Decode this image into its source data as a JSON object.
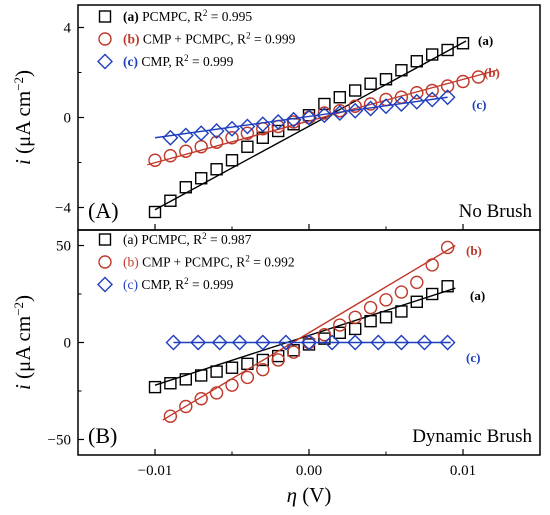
{
  "chart_data": [
    {
      "type": "scatter",
      "panel_label": "(A)",
      "corner_label": "No Brush",
      "xlabel": "",
      "ylabel": "i (μA cm−2)",
      "xlim": [
        -0.015,
        0.015
      ],
      "ylim": [
        -5,
        5
      ],
      "yticks": [
        -4,
        0,
        4
      ],
      "ytick_labels": [
        "−4",
        "0",
        "4"
      ],
      "legend_position": "top-left",
      "series": [
        {
          "id": "a",
          "tag": "(a)",
          "name": "PCMPC",
          "r2": "0.995",
          "label": "(a)",
          "marker": "square",
          "color": "#000000",
          "label_color": "#000000",
          "bold_tag": true,
          "fit": [
            [
              -0.01,
              -4.1
            ],
            [
              0.0102,
              3.4
            ]
          ],
          "x": [
            -0.01,
            -0.009,
            -0.008,
            -0.007,
            -0.006,
            -0.005,
            -0.004,
            -0.003,
            -0.002,
            -0.001,
            0.0,
            0.001,
            0.002,
            0.003,
            0.004,
            0.005,
            0.006,
            0.007,
            0.008,
            0.009,
            0.01
          ],
          "y": [
            -4.2,
            -3.7,
            -3.1,
            -2.7,
            -2.3,
            -1.9,
            -1.3,
            -0.9,
            -0.6,
            -0.3,
            0.1,
            0.6,
            0.9,
            1.2,
            1.5,
            1.7,
            2.1,
            2.5,
            2.8,
            3.0,
            3.3
          ]
        },
        {
          "id": "b",
          "tag": "(b)",
          "name": "CMP + PCMPC",
          "r2": "0.999",
          "label": "(b)",
          "marker": "circle",
          "color": "#c0392b",
          "label_color": "#c0392b",
          "bold_tag": true,
          "fit": [
            [
              -0.0105,
              -2.1
            ],
            [
              0.0122,
              2.1
            ]
          ],
          "x": [
            -0.01,
            -0.009,
            -0.008,
            -0.007,
            -0.006,
            -0.005,
            -0.004,
            -0.003,
            -0.002,
            -0.001,
            0.0,
            0.001,
            0.002,
            0.003,
            0.004,
            0.005,
            0.006,
            0.007,
            0.008,
            0.009,
            0.01,
            0.011
          ],
          "y": [
            -1.9,
            -1.7,
            -1.5,
            -1.3,
            -1.1,
            -0.9,
            -0.7,
            -0.5,
            -0.4,
            -0.2,
            0.0,
            0.2,
            0.3,
            0.5,
            0.6,
            0.8,
            0.9,
            1.1,
            1.2,
            1.4,
            1.6,
            1.8
          ]
        },
        {
          "id": "c",
          "tag": "(c)",
          "name": "CMP",
          "r2": "0.999",
          "label": "(c)",
          "marker": "diamond",
          "color": "#1f3fbf",
          "label_color": "#1f3fbf",
          "bold_tag": true,
          "fit": [
            [
              -0.01,
              -0.9
            ],
            [
              0.009,
              0.9
            ]
          ],
          "x": [
            -0.009,
            -0.008,
            -0.007,
            -0.006,
            -0.005,
            -0.004,
            -0.003,
            -0.002,
            -0.001,
            0.0,
            0.001,
            0.002,
            0.003,
            0.004,
            0.005,
            0.006,
            0.007,
            0.008,
            0.009
          ],
          "y": [
            -0.9,
            -0.8,
            -0.7,
            -0.6,
            -0.5,
            -0.4,
            -0.3,
            -0.2,
            -0.1,
            0.0,
            0.1,
            0.2,
            0.3,
            0.4,
            0.5,
            0.6,
            0.7,
            0.8,
            0.9
          ]
        }
      ]
    },
    {
      "type": "scatter",
      "panel_label": "(B)",
      "corner_label": "Dynamic Brush",
      "xlabel": "η (V)",
      "ylabel": "i (μA cm−2)",
      "xlim": [
        -0.015,
        0.015
      ],
      "ylim": [
        -58,
        58
      ],
      "yticks": [
        -50,
        0,
        50
      ],
      "ytick_labels": [
        "−50",
        "0",
        "50"
      ],
      "xticks": [
        -0.01,
        0.0,
        0.01
      ],
      "xtick_labels": [
        "−0.01",
        "0.00",
        "0.01"
      ],
      "legend_position": "top-left",
      "series": [
        {
          "id": "a",
          "tag": "(a)",
          "name": "PCMPC",
          "r2": "0.987",
          "label": "(a)",
          "marker": "square",
          "color": "#000000",
          "label_color": "#000000",
          "bold_tag": false,
          "fit": [
            [
              -0.01,
              -22
            ],
            [
              0.0095,
              28
            ]
          ],
          "x": [
            -0.01,
            -0.009,
            -0.008,
            -0.007,
            -0.006,
            -0.005,
            -0.004,
            -0.003,
            -0.002,
            -0.001,
            0.0,
            0.001,
            0.002,
            0.003,
            0.004,
            0.005,
            0.006,
            0.007,
            0.008,
            0.009
          ],
          "y": [
            -23,
            -21,
            -19,
            -17,
            -15,
            -13,
            -11,
            -9,
            -7,
            -4,
            -1,
            2,
            5,
            7,
            11,
            13,
            16,
            21,
            25,
            29
          ]
        },
        {
          "id": "b",
          "tag": "(b)",
          "name": "CMP + PCMPC",
          "r2": "0.992",
          "label": "(b)",
          "marker": "circle",
          "color": "#c0392b",
          "label_color": "#c0392b",
          "bold_tag": false,
          "fit": [
            [
              -0.0095,
              -40
            ],
            [
              0.0095,
              50
            ]
          ],
          "x": [
            -0.009,
            -0.008,
            -0.007,
            -0.006,
            -0.005,
            -0.004,
            -0.003,
            -0.002,
            -0.001,
            0.0,
            0.001,
            0.002,
            0.003,
            0.004,
            0.005,
            0.006,
            0.007,
            0.008,
            0.009
          ],
          "y": [
            -38,
            -33,
            -29,
            -26,
            -22,
            -18,
            -14,
            -9,
            -5,
            0,
            4,
            9,
            13,
            18,
            22,
            26,
            31,
            40,
            49
          ]
        },
        {
          "id": "c",
          "tag": "(c)",
          "name": "CMP",
          "r2": "0.999",
          "label": "(c)",
          "marker": "diamond",
          "color": "#1f3fbf",
          "label_color": "#1f3fbf",
          "bold_tag": false,
          "fit": [
            [
              -0.0088,
              0
            ],
            [
              0.0092,
              0
            ]
          ],
          "x": [
            -0.0088,
            -0.0072,
            -0.0058,
            -0.0045,
            -0.003,
            -0.0015,
            0.0,
            0.0015,
            0.003,
            0.0045,
            0.006,
            0.0075,
            0.009
          ],
          "y": [
            0,
            0,
            0,
            0,
            0,
            0,
            0,
            0,
            0,
            0,
            0,
            0,
            0
          ]
        }
      ]
    }
  ]
}
